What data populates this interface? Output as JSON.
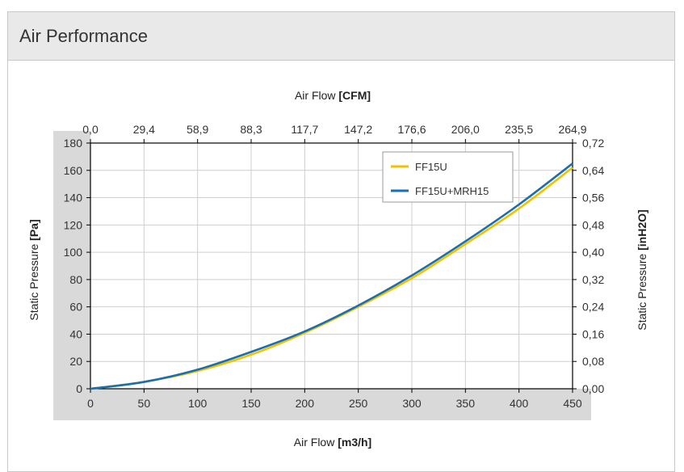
{
  "panel": {
    "title": "Air Performance"
  },
  "colors": {
    "header_bg": "#e9e9e9",
    "plot_backdrop": "#d9d9d9",
    "series_1": "#f2c200",
    "series_2": "#1a6fb0",
    "grid": "#cfcfcf"
  },
  "chart_data": {
    "type": "line",
    "title": "",
    "x_bottom": {
      "label_prefix": "Air Flow ",
      "label_unit": "[m3/h]",
      "range": [
        0,
        450
      ],
      "ticks": [
        "0",
        "50",
        "100",
        "150",
        "200",
        "250",
        "300",
        "350",
        "400",
        "450"
      ]
    },
    "x_top": {
      "label_prefix": "Air Flow ",
      "label_unit": "[CFM]",
      "ticks": [
        "0,0",
        "29,4",
        "58,9",
        "88,3",
        "117,7",
        "147,2",
        "176,6",
        "206,0",
        "235,5",
        "264,9"
      ]
    },
    "y_left": {
      "label_prefix": "Static Pressure ",
      "label_unit": "[Pa]",
      "range": [
        0,
        180
      ],
      "ticks": [
        "0",
        "20",
        "40",
        "60",
        "80",
        "100",
        "120",
        "140",
        "160",
        "180"
      ]
    },
    "y_right": {
      "label_prefix": "Static Pressure ",
      "label_unit": "[inH2O]",
      "ticks": [
        "0,00",
        "0,08",
        "0,16",
        "0,24",
        "0,32",
        "0,40",
        "0,48",
        "0,56",
        "0,64",
        "0,72"
      ]
    },
    "grid": true,
    "legend_position": "top-right",
    "series": [
      {
        "name": "FF15U",
        "color": "#f2c200",
        "x": [
          0,
          50,
          100,
          150,
          200,
          250,
          300,
          350,
          400,
          450
        ],
        "y": [
          0,
          5,
          13,
          25,
          41,
          60,
          81,
          106,
          132,
          162
        ]
      },
      {
        "name": "FF15U+MRH15",
        "color": "#1a6fb0",
        "x": [
          0,
          50,
          100,
          150,
          200,
          250,
          300,
          350,
          400,
          450
        ],
        "y": [
          0,
          5,
          14,
          27,
          42,
          61,
          83,
          108,
          135,
          165
        ]
      }
    ]
  }
}
